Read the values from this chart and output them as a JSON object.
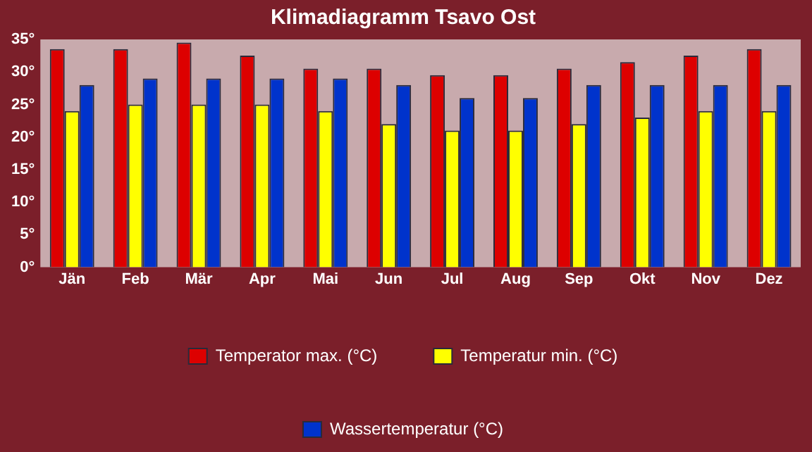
{
  "chart_data": {
    "type": "bar",
    "title": "Klimadiagramm Tsavo Ost",
    "categories": [
      "Jän",
      "Feb",
      "Mär",
      "Apr",
      "Mai",
      "Jun",
      "Jul",
      "Aug",
      "Sep",
      "Okt",
      "Nov",
      "Dez"
    ],
    "series": [
      {
        "name": "Temperator max. (°C)",
        "color": "#dd0000",
        "values": [
          33.5,
          33.5,
          34.5,
          32.5,
          30.5,
          30.5,
          29.5,
          29.5,
          30.5,
          31.5,
          32.5,
          33.5
        ]
      },
      {
        "name": "Temperatur min. (°C)",
        "color": "#ffff00",
        "values": [
          24,
          25,
          25,
          25,
          24,
          22,
          21,
          21,
          22,
          23,
          24,
          24
        ]
      },
      {
        "name": "Wassertemperatur (°C)",
        "color": "#0033cc",
        "values": [
          28,
          29,
          29,
          29,
          29,
          28,
          26,
          26,
          28,
          28,
          28,
          28
        ]
      }
    ],
    "ylim": [
      0,
      35
    ],
    "yticks": [
      {
        "value": 0,
        "label": "0°"
      },
      {
        "value": 5,
        "label": "5°"
      },
      {
        "value": 10,
        "label": "10°"
      },
      {
        "value": 15,
        "label": "15°"
      },
      {
        "value": 20,
        "label": "20°"
      },
      {
        "value": 25,
        "label": "25°"
      },
      {
        "value": 30,
        "label": "30°"
      },
      {
        "value": 35,
        "label": "35°"
      }
    ],
    "legend": "bottom"
  }
}
